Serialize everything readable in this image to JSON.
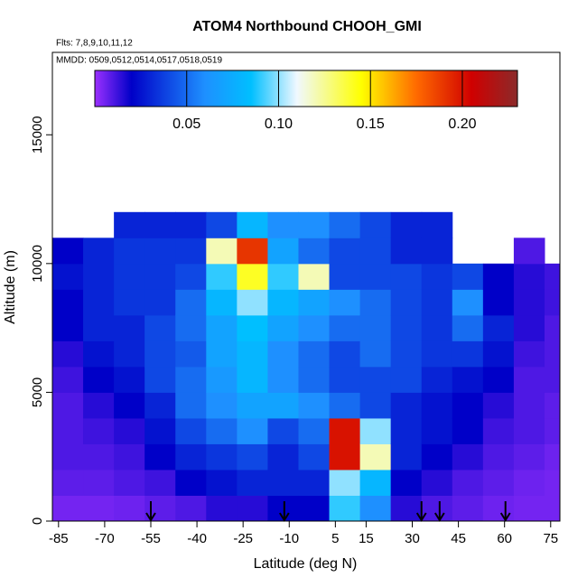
{
  "chart_data": {
    "type": "heatmap",
    "title": "ATOM4 Northbound CHOOH_GMI",
    "subtitle": "Flts: 7,8,9,10,11,12",
    "annotation": "MMDD: 0509,0512,0514,0517,0518,0519",
    "xlabel": "Latitude (deg N)",
    "ylabel": "Altitude (m)",
    "xlim": [
      -87,
      78
    ],
    "ylim": [
      0,
      18200
    ],
    "xticks": [
      -85,
      -70,
      -55,
      -40,
      -25,
      -10,
      5,
      15,
      30,
      45,
      60,
      75
    ],
    "yticks": [
      0,
      5000,
      10000,
      15000
    ],
    "x_edges": [
      -87,
      -77,
      -67,
      -57,
      -47,
      -37,
      -27,
      -17,
      -7,
      3,
      13,
      23,
      33,
      43,
      53,
      63,
      73,
      78
    ],
    "y_edges": [
      0,
      1000,
      2000,
      3000,
      4000,
      5000,
      6000,
      7000,
      8000,
      9000,
      10000,
      11000,
      12000
    ],
    "z": [
      [
        0.005,
        0.008,
        0.01,
        0.01,
        0.01,
        0.012,
        0.015,
        0.02,
        0.02,
        0.025,
        0.02,
        null
      ],
      [
        0.005,
        0.008,
        0.01,
        0.012,
        0.015,
        0.02,
        0.025,
        0.03,
        0.03,
        0.03,
        0.03,
        null
      ],
      [
        0.006,
        0.01,
        0.012,
        0.015,
        0.02,
        0.025,
        0.03,
        0.03,
        0.035,
        0.035,
        0.035,
        0.03
      ],
      [
        0.008,
        0.012,
        0.02,
        0.025,
        0.03,
        0.04,
        0.04,
        0.04,
        0.035,
        0.035,
        0.035,
        0.03
      ],
      [
        0.01,
        0.02,
        0.03,
        0.04,
        0.05,
        0.05,
        0.045,
        0.05,
        0.05,
        0.04,
        0.035,
        0.03
      ],
      [
        0.015,
        0.025,
        0.035,
        0.05,
        0.06,
        0.065,
        0.07,
        0.07,
        0.08,
        0.09,
        0.12,
        0.04
      ],
      [
        0.015,
        0.03,
        0.04,
        0.06,
        0.07,
        0.08,
        0.08,
        0.085,
        0.1,
        0.14,
        0.19,
        0.08
      ],
      [
        0.02,
        0.03,
        0.03,
        0.04,
        0.07,
        0.06,
        0.06,
        0.07,
        0.08,
        0.09,
        0.07,
        0.06
      ],
      [
        0.02,
        0.03,
        0.04,
        0.05,
        0.06,
        0.05,
        0.05,
        0.06,
        0.07,
        0.12,
        0.05,
        0.06
      ],
      [
        0.09,
        0.1,
        0.2,
        0.2,
        0.05,
        0.04,
        0.04,
        0.05,
        0.06,
        0.04,
        0.04,
        0.05
      ],
      [
        0.06,
        0.08,
        0.12,
        0.1,
        0.04,
        0.04,
        0.05,
        0.05,
        0.05,
        0.04,
        0.04,
        0.04
      ],
      [
        0.015,
        0.02,
        0.03,
        0.03,
        0.03,
        0.04,
        0.04,
        0.04,
        0.04,
        0.04,
        0.03,
        0.03
      ],
      [
        0.01,
        0.015,
        0.02,
        0.025,
        0.025,
        0.03,
        0.035,
        0.035,
        0.035,
        0.035,
        0.03,
        0.03
      ],
      [
        0.008,
        0.01,
        0.015,
        0.02,
        0.02,
        0.025,
        0.035,
        0.05,
        0.06,
        0.04,
        null,
        null
      ],
      [
        0.006,
        0.008,
        0.01,
        0.012,
        0.015,
        0.02,
        0.025,
        0.03,
        0.02,
        0.02,
        null,
        null
      ],
      [
        0.005,
        0.006,
        0.008,
        0.01,
        0.01,
        0.01,
        0.012,
        0.015,
        0.015,
        0.015,
        0.01,
        null
      ],
      [
        0.005,
        0.005,
        0.006,
        0.008,
        0.008,
        0.01,
        0.01,
        0.01,
        0.012,
        0.012,
        null,
        null
      ]
    ],
    "zlim": [
      0,
      0.23
    ],
    "zticks": [
      0.05,
      {
        "value": 0.1,
        "label": "0.10"
      },
      0.15,
      {
        "value": 0.2,
        "label": "0.20"
      }
    ],
    "colorscale": [
      [
        0,
        "#9b30ff"
      ],
      [
        0.02,
        "#0000c8"
      ],
      [
        0.06,
        "#1e90ff"
      ],
      [
        0.085,
        "#00bfff"
      ],
      [
        0.11,
        "#f0f8ff"
      ],
      [
        0.145,
        "#ffff00"
      ],
      [
        0.175,
        "#ff6a00"
      ],
      [
        0.205,
        "#d00000"
      ],
      [
        0.23,
        "#8b2a2a"
      ]
    ],
    "arrow_lats": [
      -55,
      -11.6,
      33,
      38.9,
      60.3
    ]
  }
}
